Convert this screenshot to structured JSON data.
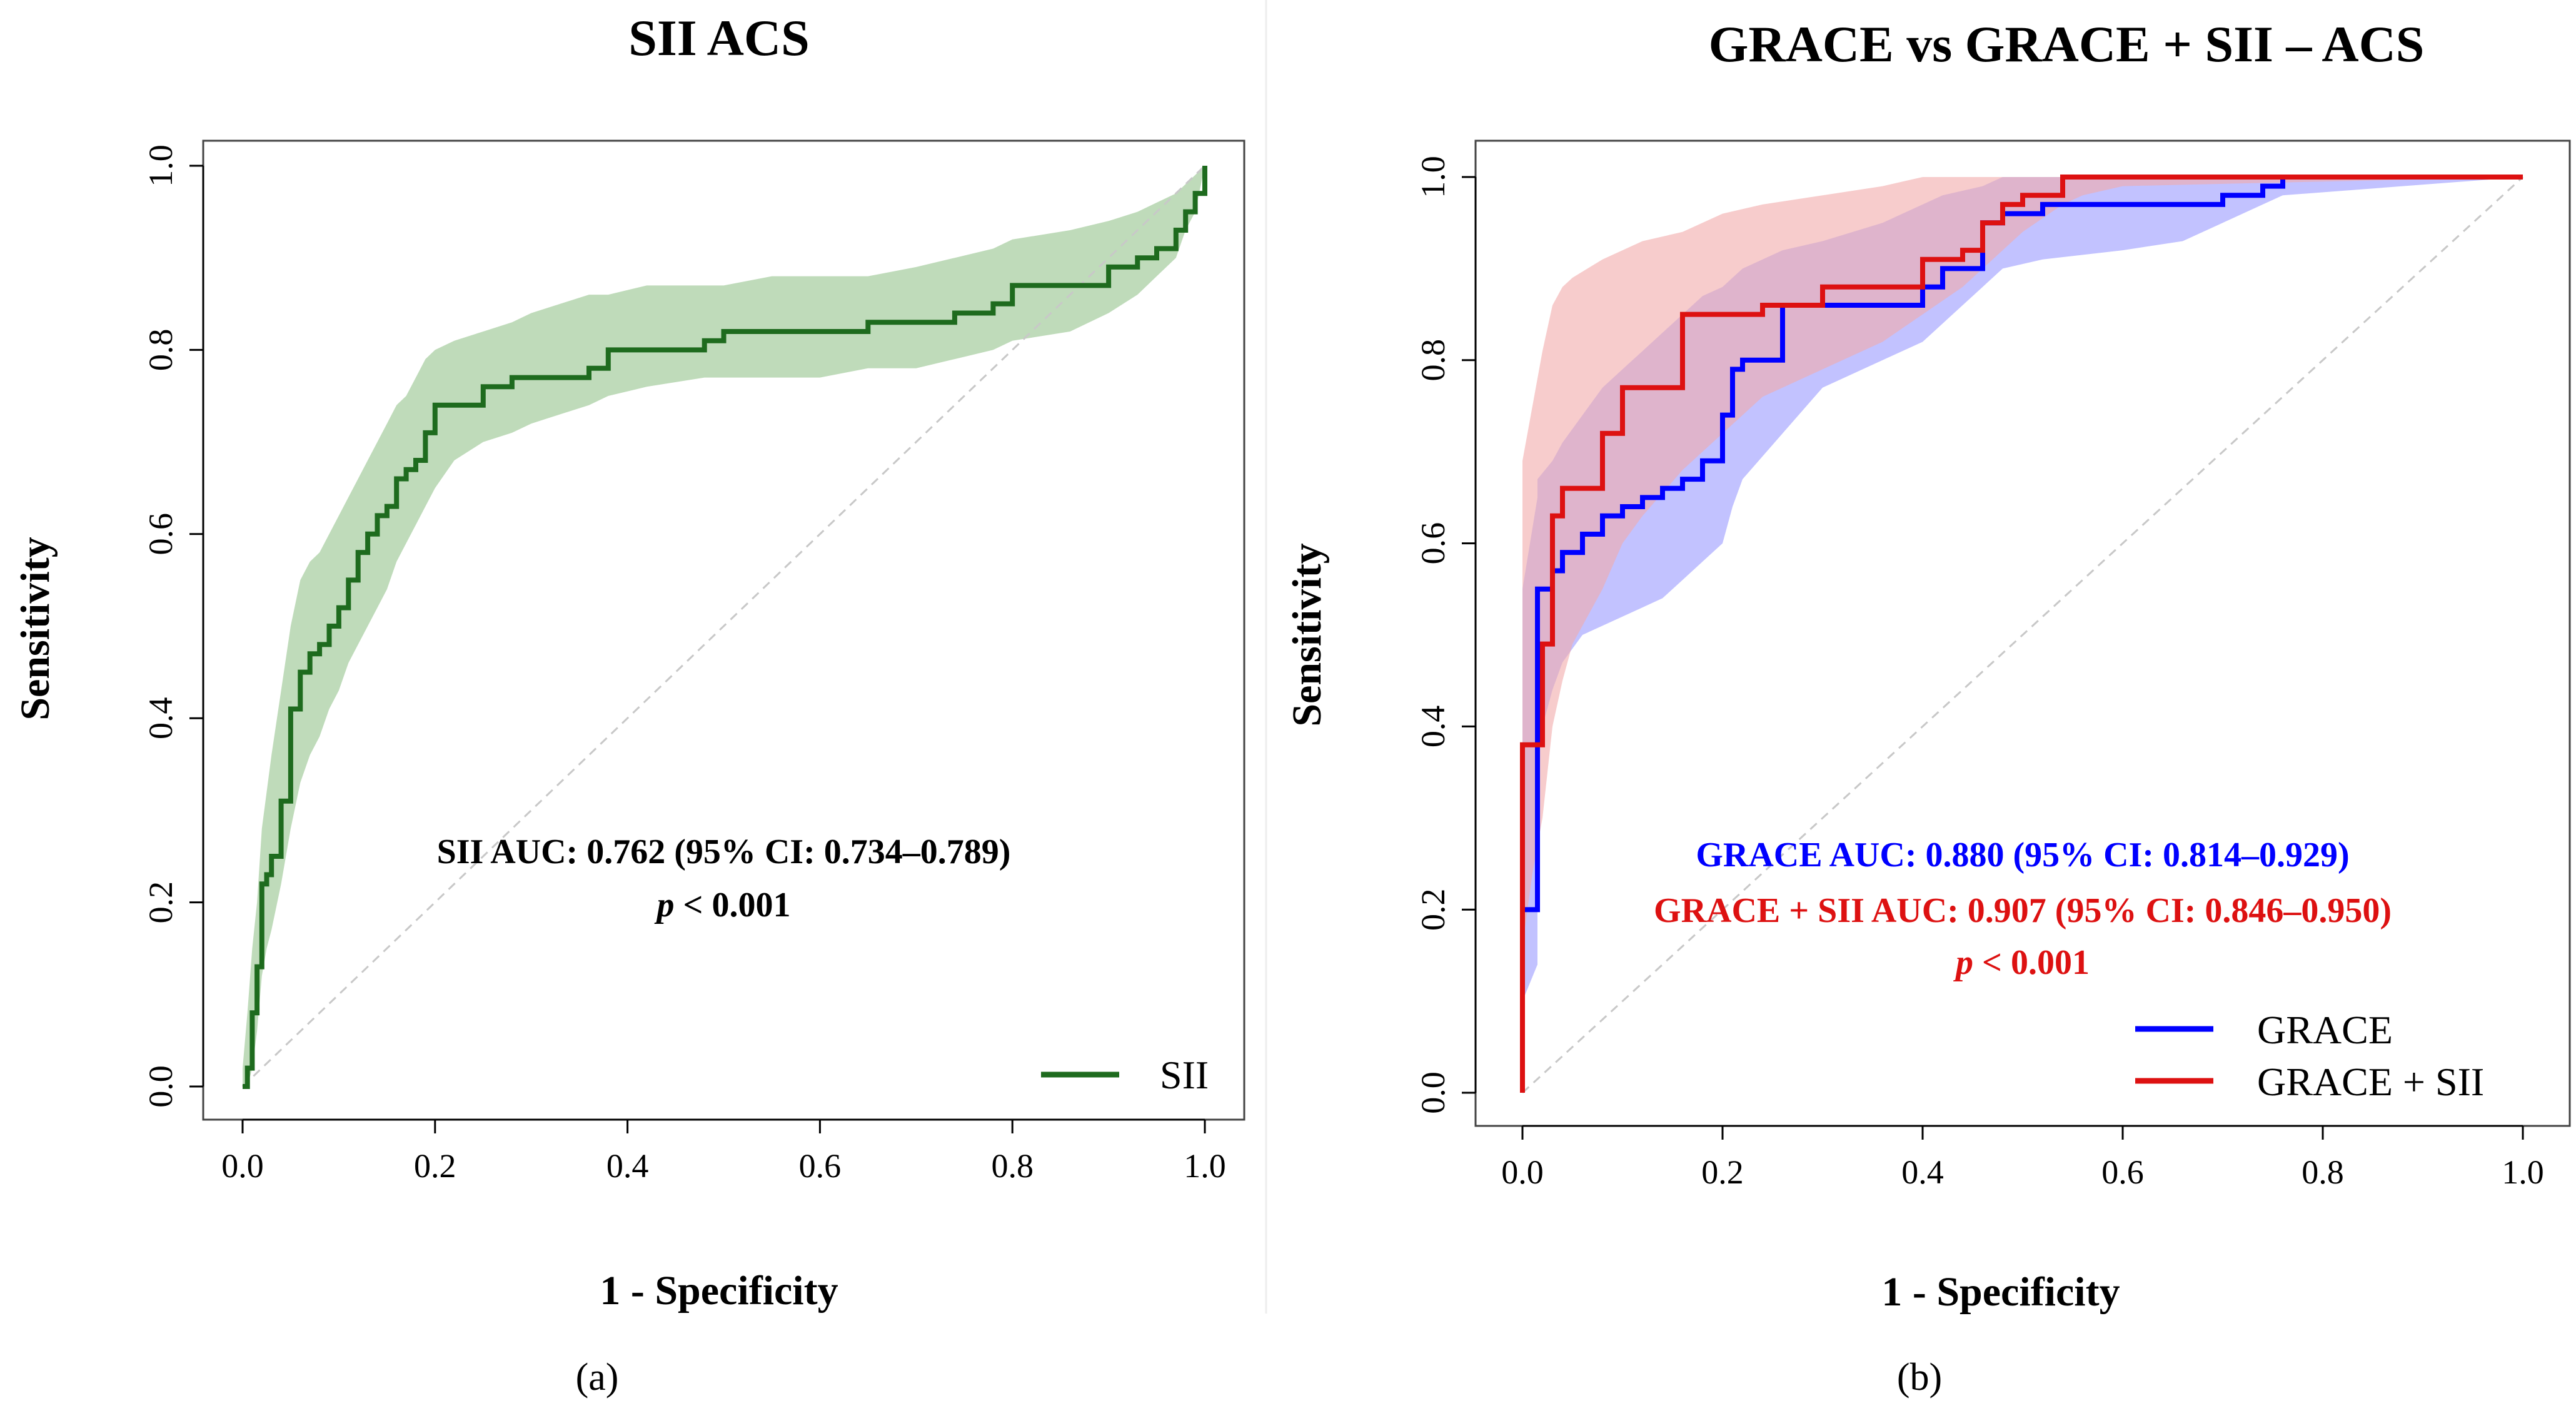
{
  "colors": {
    "sii_line": "#1e6b1e",
    "sii_band": "#a9cfa3",
    "grace_line": "#0000ff",
    "grace_band": "#9a9aff",
    "grace_sii_line": "#dd1111",
    "grace_sii_band": "#f2aaaa",
    "reference_line": "#c8c8c8",
    "frame": "#444444"
  },
  "chart_data": [
    {
      "type": "line",
      "panel_caption": "(a)",
      "title": "SII ACS",
      "xlabel": "1 - Specificity",
      "ylabel": "Sensitivity",
      "xlim": [
        0,
        1
      ],
      "ylim": [
        0,
        1
      ],
      "xticks": [
        0,
        0.2,
        0.4,
        0.6,
        0.8,
        1
      ],
      "yticks": [
        0,
        0.2,
        0.4,
        0.6,
        0.8,
        1
      ],
      "tick_labels_x": [
        "0.0",
        "0.2",
        "0.4",
        "0.6",
        "0.8",
        "1.0"
      ],
      "tick_labels_y": [
        "0.0",
        "0.2",
        "0.4",
        "0.6",
        "0.8",
        "1.0"
      ],
      "reference_diagonal": true,
      "annotations": [
        {
          "text": "SII AUC: 0.762 (95% CI: 0.734–0.789)",
          "color": "#000000",
          "x": 0.5,
          "y": 0.25
        },
        {
          "text": "< 0.001",
          "prefix_italic": "p",
          "color": "#000000",
          "x": 0.5,
          "y": 0.195
        }
      ],
      "legend": {
        "position": "bottom-right",
        "entries": [
          {
            "label": "SII",
            "series": 0
          }
        ]
      },
      "series": [
        {
          "name": "SII",
          "color": "#1e6b1e",
          "band_color": "#a9cfa3",
          "band_opacity": 0.75,
          "step": true,
          "x": [
            0,
            0.005,
            0.01,
            0.015,
            0.02,
            0.025,
            0.03,
            0.04,
            0.05,
            0.06,
            0.07,
            0.08,
            0.09,
            0.1,
            0.11,
            0.12,
            0.13,
            0.14,
            0.15,
            0.16,
            0.17,
            0.18,
            0.19,
            0.2,
            0.22,
            0.25,
            0.28,
            0.3,
            0.33,
            0.36,
            0.38,
            0.42,
            0.48,
            0.5,
            0.55,
            0.6,
            0.65,
            0.7,
            0.74,
            0.78,
            0.8,
            0.86,
            0.9,
            0.93,
            0.95,
            0.97,
            0.98,
            0.99,
            1.0
          ],
          "y": [
            0.0,
            0.02,
            0.08,
            0.13,
            0.22,
            0.23,
            0.25,
            0.31,
            0.41,
            0.45,
            0.47,
            0.48,
            0.5,
            0.52,
            0.55,
            0.58,
            0.6,
            0.62,
            0.63,
            0.66,
            0.67,
            0.68,
            0.71,
            0.74,
            0.74,
            0.76,
            0.77,
            0.77,
            0.77,
            0.78,
            0.8,
            0.8,
            0.81,
            0.82,
            0.82,
            0.82,
            0.83,
            0.83,
            0.84,
            0.85,
            0.87,
            0.87,
            0.89,
            0.9,
            0.91,
            0.93,
            0.95,
            0.97,
            1.0
          ],
          "ci_lower": [
            0.0,
            0.0,
            0.02,
            0.06,
            0.12,
            0.15,
            0.17,
            0.22,
            0.28,
            0.33,
            0.36,
            0.38,
            0.41,
            0.43,
            0.46,
            0.48,
            0.5,
            0.52,
            0.54,
            0.57,
            0.59,
            0.61,
            0.63,
            0.65,
            0.68,
            0.7,
            0.71,
            0.72,
            0.73,
            0.74,
            0.75,
            0.76,
            0.77,
            0.77,
            0.77,
            0.77,
            0.78,
            0.78,
            0.79,
            0.8,
            0.81,
            0.82,
            0.84,
            0.86,
            0.88,
            0.9,
            0.93,
            0.95,
            1.0
          ],
          "ci_upper": [
            0.02,
            0.08,
            0.15,
            0.2,
            0.28,
            0.32,
            0.36,
            0.43,
            0.5,
            0.55,
            0.57,
            0.58,
            0.6,
            0.62,
            0.64,
            0.66,
            0.68,
            0.7,
            0.72,
            0.74,
            0.75,
            0.77,
            0.79,
            0.8,
            0.81,
            0.82,
            0.83,
            0.84,
            0.85,
            0.86,
            0.86,
            0.87,
            0.87,
            0.87,
            0.88,
            0.88,
            0.88,
            0.89,
            0.9,
            0.91,
            0.92,
            0.93,
            0.94,
            0.95,
            0.96,
            0.97,
            0.98,
            0.99,
            1.0
          ]
        }
      ]
    },
    {
      "type": "line",
      "panel_caption": "(b)",
      "title": "GRACE vs GRACE + SII – ACS",
      "xlabel": "1 - Specificity",
      "ylabel": "Sensitivity",
      "xlim": [
        0,
        1
      ],
      "ylim": [
        0,
        1
      ],
      "xticks": [
        0,
        0.2,
        0.4,
        0.6,
        0.8,
        1
      ],
      "yticks": [
        0,
        0.2,
        0.4,
        0.6,
        0.8,
        1
      ],
      "tick_labels_x": [
        "0.0",
        "0.2",
        "0.4",
        "0.6",
        "0.8",
        "1.0"
      ],
      "tick_labels_y": [
        "0.0",
        "0.2",
        "0.4",
        "0.6",
        "0.8",
        "1.0"
      ],
      "reference_diagonal": true,
      "annotations": [
        {
          "text": "GRACE AUC: 0.880 (95% CI: 0.814–0.929)",
          "color": "#0000ff",
          "x": 0.5,
          "y": 0.25
        },
        {
          "text": "GRACE + SII AUC: 0.907 (95% CI: 0.846–0.950)",
          "color": "#dd1111",
          "x": 0.5,
          "y": 0.19
        },
        {
          "text": "< 0.001",
          "prefix_italic": "p",
          "color": "#dd1111",
          "x": 0.5,
          "y": 0.13
        }
      ],
      "legend": {
        "position": "bottom-right",
        "entries": [
          {
            "label": "GRACE",
            "series": 0
          },
          {
            "label": "GRACE + SII",
            "series": 1
          }
        ]
      },
      "series": [
        {
          "name": "GRACE",
          "color": "#0000ff",
          "band_color": "#9a9aff",
          "band_opacity": 0.6,
          "step": true,
          "x": [
            0,
            0.0,
            0.015,
            0.015,
            0.03,
            0.04,
            0.06,
            0.08,
            0.1,
            0.12,
            0.14,
            0.16,
            0.18,
            0.2,
            0.21,
            0.22,
            0.26,
            0.3,
            0.36,
            0.4,
            0.42,
            0.46,
            0.48,
            0.52,
            0.6,
            0.66,
            0.7,
            0.74,
            0.76,
            1.0
          ],
          "y": [
            0.0,
            0.2,
            0.24,
            0.55,
            0.57,
            0.59,
            0.61,
            0.63,
            0.64,
            0.65,
            0.66,
            0.67,
            0.69,
            0.74,
            0.79,
            0.8,
            0.86,
            0.86,
            0.86,
            0.88,
            0.9,
            0.95,
            0.96,
            0.97,
            0.97,
            0.97,
            0.98,
            0.99,
            1.0,
            1.0
          ],
          "ci_lower": [
            0.0,
            0.1,
            0.14,
            0.38,
            0.44,
            0.47,
            0.5,
            0.51,
            0.52,
            0.53,
            0.54,
            0.56,
            0.58,
            0.6,
            0.64,
            0.67,
            0.72,
            0.77,
            0.8,
            0.82,
            0.84,
            0.88,
            0.9,
            0.91,
            0.92,
            0.93,
            0.95,
            0.97,
            0.98,
            1.0
          ],
          "ci_upper": [
            0.3,
            0.55,
            0.65,
            0.67,
            0.69,
            0.71,
            0.74,
            0.77,
            0.79,
            0.81,
            0.83,
            0.85,
            0.87,
            0.88,
            0.89,
            0.9,
            0.92,
            0.93,
            0.95,
            0.97,
            0.98,
            0.99,
            1.0,
            1.0,
            1.0,
            1.0,
            1.0,
            1.0,
            1.0,
            1.0
          ]
        },
        {
          "name": "GRACE + SII",
          "color": "#dd1111",
          "band_color": "#f2aaaa",
          "band_opacity": 0.6,
          "step": true,
          "x": [
            0,
            0.0,
            0.01,
            0.02,
            0.03,
            0.04,
            0.05,
            0.08,
            0.1,
            0.12,
            0.16,
            0.2,
            0.24,
            0.3,
            0.36,
            0.4,
            0.44,
            0.46,
            0.48,
            0.5,
            0.54,
            0.56,
            0.6,
            1.0
          ],
          "y": [
            0.0,
            0.38,
            0.38,
            0.49,
            0.63,
            0.66,
            0.66,
            0.72,
            0.77,
            0.77,
            0.85,
            0.85,
            0.86,
            0.88,
            0.88,
            0.91,
            0.92,
            0.95,
            0.97,
            0.98,
            1.0,
            1.0,
            1.0,
            1.0
          ],
          "ci_lower": [
            0.0,
            0.16,
            0.24,
            0.3,
            0.4,
            0.45,
            0.49,
            0.55,
            0.6,
            0.63,
            0.68,
            0.72,
            0.76,
            0.79,
            0.82,
            0.85,
            0.88,
            0.9,
            0.92,
            0.94,
            0.97,
            0.98,
            0.99,
            1.0
          ],
          "ci_upper": [
            0.38,
            0.69,
            0.75,
            0.81,
            0.86,
            0.88,
            0.89,
            0.91,
            0.92,
            0.93,
            0.94,
            0.96,
            0.97,
            0.98,
            0.99,
            1.0,
            1.0,
            1.0,
            1.0,
            1.0,
            1.0,
            1.0,
            1.0,
            1.0
          ]
        }
      ]
    }
  ]
}
